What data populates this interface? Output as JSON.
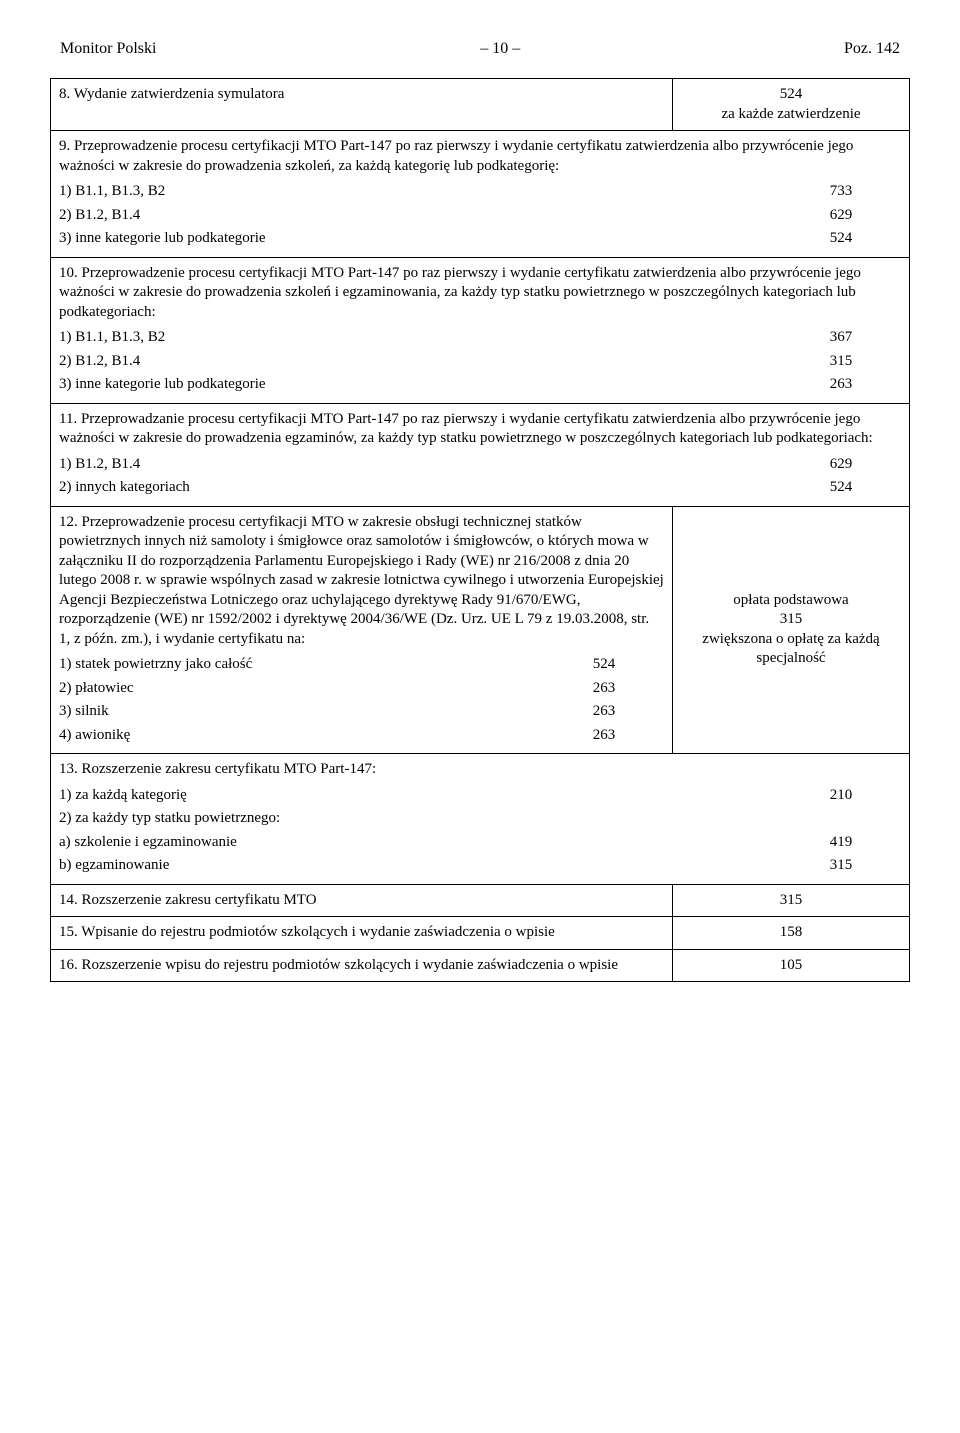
{
  "header": {
    "left": "Monitor Polski",
    "center": "– 10 –",
    "right": "Poz. 142"
  },
  "rows": [
    {
      "left": "8. Wydanie zatwierdzenia symulatora",
      "right": "524\nza każde zatwierdzenie"
    },
    {
      "left": {
        "desc": "9. Przeprowadzenie procesu certyfikacji MTO Part-147 po raz pierwszy i wydanie certyfikatu zatwierdzenia albo przywrócenie jego ważności w zakresie do prowadzenia szkoleń, za każdą kategorię lub podkategorię:",
        "items": [
          [
            "1) B1.1, B1.3, B2",
            "733"
          ],
          [
            "2) B1.2, B1.4",
            "629"
          ],
          [
            "3) inne kategorie lub podkategorie",
            "524"
          ]
        ]
      }
    },
    {
      "left": {
        "desc": "10. Przeprowadzenie procesu certyfikacji MTO Part-147 po raz pierwszy i wydanie certyfikatu zatwierdzenia albo przywrócenie jego ważności w zakresie do prowadzenia szkoleń i egzaminowania, za każdy typ statku powietrznego w poszczególnych kategoriach lub podkategoriach:",
        "items": [
          [
            "1) B1.1, B1.3, B2",
            "367"
          ],
          [
            "2) B1.2, B1.4",
            "315"
          ],
          [
            "3) inne kategorie lub podkategorie",
            "263"
          ]
        ]
      }
    },
    {
      "left": {
        "desc": "11. Przeprowadzanie procesu certyfikacji MTO Part-147 po raz pierwszy i wydanie certyfikatu zatwierdzenia albo przywrócenie jego ważności w zakresie do prowadzenia egzaminów, za każdy typ statku powietrznego w poszczególnych kategoriach lub podkategoriach:",
        "items": [
          [
            "1) B1.2, B1.4",
            "629"
          ],
          [
            "2) innych kategoriach",
            "524"
          ]
        ]
      }
    },
    {
      "left": {
        "desc": "12. Przeprowadzenie procesu certyfikacji MTO w zakresie obsługi technicznej statków powietrznych innych niż samoloty i śmigłowce oraz samolotów i śmigłowców, o których mowa w załączniku II do rozporządzenia Parlamentu Europejskiego i Rady (WE) nr 216/2008 z dnia 20 lutego 2008 r. w sprawie wspólnych zasad w zakresie lotnictwa cywilnego i utworzenia Europejskiej Agencji Bezpieczeństwa Lotniczego oraz uchylającego dyrektywę Rady 91/670/EWG, rozporządzenie (WE) nr 1592/2002 i dyrektywę 2004/36/WE (Dz. Urz. UE L 79 z 19.03.2008, str. 1, z późn. zm.), i wydanie certyfikatu na:",
        "items": [
          [
            "1) statek powietrzny jako całość",
            "524"
          ],
          [
            "2) płatowiec",
            "263"
          ],
          [
            "3) silnik",
            "263"
          ],
          [
            "4) awionikę",
            "263"
          ]
        ]
      },
      "right": "opłata podstawowa\n315\nzwiększona o opłatę za każdą specjalność"
    },
    {
      "left": {
        "desc": "13. Rozszerzenie zakresu certyfikatu MTO Part-147:",
        "items": [
          [
            "1) za każdą kategorię",
            "210"
          ],
          [
            "2) za każdy typ statku powietrznego:",
            ""
          ],
          [
            "a) szkolenie i egzaminowanie",
            "419",
            "indent2"
          ],
          [
            "b) egzaminowanie",
            "315",
            "indent2"
          ]
        ]
      }
    },
    {
      "left": "14. Rozszerzenie zakresu certyfikatu MTO",
      "rightCell": "315"
    },
    {
      "left": "15. Wpisanie do rejestru podmiotów szkolących i wydanie zaświadczenia o wpisie",
      "rightCell": "158"
    },
    {
      "left": "16. Rozszerzenie wpisu do rejestru podmiotów szkolących i wydanie zaświadczenia o wpisie",
      "rightCell": "105"
    }
  ]
}
